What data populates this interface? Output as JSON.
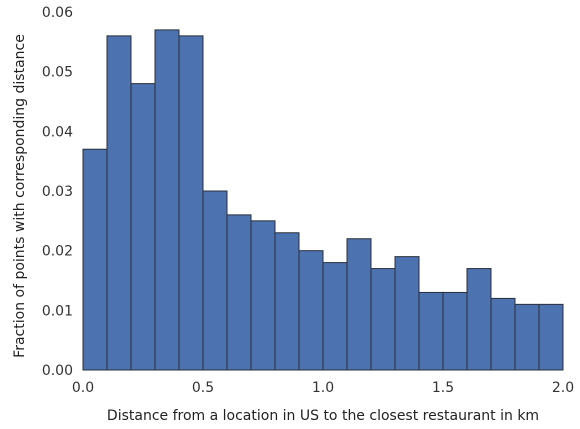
{
  "chart_data": {
    "type": "bar",
    "title": "",
    "xlabel": "Distance from a location in US to the closest restaurant in km",
    "ylabel": "Fraction of points with corresponding distance",
    "bin_edges": [
      0.0,
      0.1,
      0.2,
      0.3,
      0.4,
      0.5,
      0.6,
      0.7,
      0.8,
      0.9,
      1.0,
      1.1,
      1.2,
      1.3,
      1.4,
      1.5,
      1.6,
      1.7,
      1.8,
      1.9,
      2.0
    ],
    "values": [
      0.037,
      0.056,
      0.048,
      0.057,
      0.056,
      0.03,
      0.026,
      0.025,
      0.023,
      0.02,
      0.018,
      0.022,
      0.017,
      0.019,
      0.013,
      0.013,
      0.017,
      0.012,
      0.011,
      0.011
    ],
    "xlim": [
      0.0,
      2.0
    ],
    "ylim": [
      0.0,
      0.06
    ],
    "xticks": [
      "0.0",
      "0.5",
      "1.0",
      "1.5",
      "2.0"
    ],
    "yticks": [
      "0.00",
      "0.01",
      "0.02",
      "0.03",
      "0.04",
      "0.05",
      "0.06"
    ],
    "grid": false,
    "bar_color": "#4c72b0",
    "edge_color": "#2a2f3a"
  }
}
